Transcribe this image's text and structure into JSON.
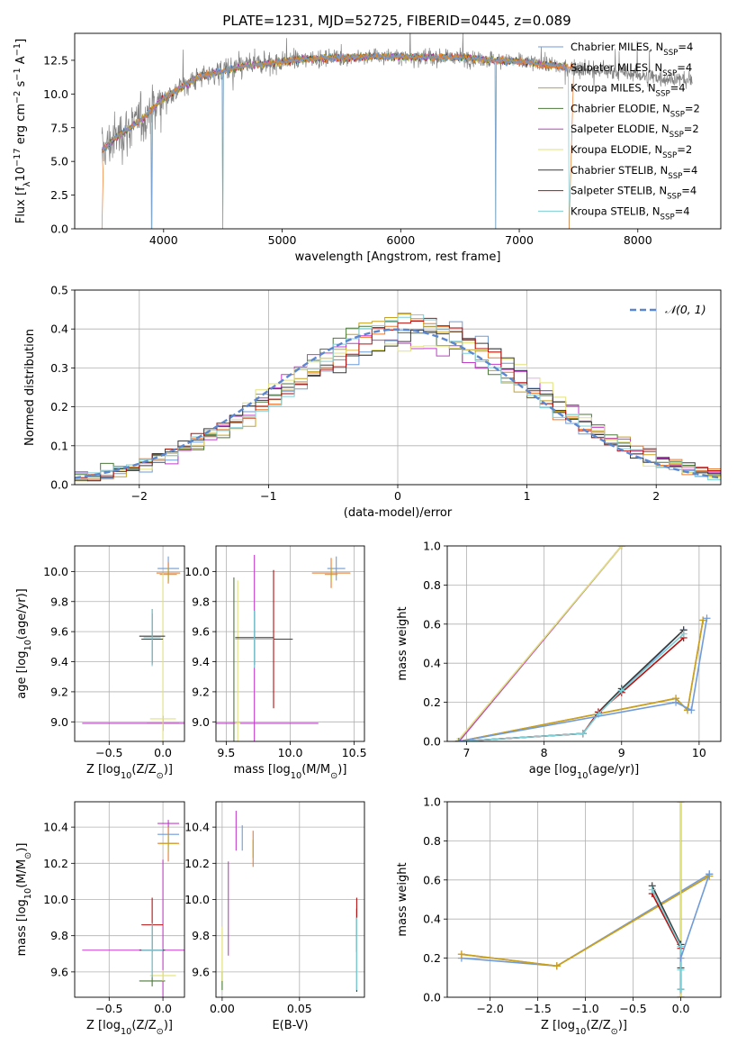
{
  "figure": {
    "title": "PLATE=1231, MJD=52725, FIBERID=0445, z=0.089",
    "legend_entries": [
      "Chabrier MILES, N$_{SSP}$=4",
      "Salpeter MILES, N$_{SSP}$=4",
      "Kroupa MILES, N$_{SSP}$=4",
      "Chabrier ELODIE, N$_{SSP}$=2",
      "Salpeter ELODIE, N$_{SSP}$=2",
      "Kroupa ELODIE, N$_{SSP}$=2",
      "Chabrier STELIB, N$_{SSP}$=4",
      "Salpeter STELIB, N$_{SSP}$=4",
      "Kroupa STELIB, N$_{SSP}$=4"
    ],
    "colors": [
      "#6f9bd9",
      "#ee7a2c",
      "#c6a21f",
      "#4c7a3a",
      "#c43ccc",
      "#e2e27a",
      "#3a3a3a",
      "#b80f0f",
      "#7dcfd6"
    ],
    "data_gray": "#808080",
    "normal_color": "#5b87d1"
  },
  "chart_data": [
    {
      "type": "line",
      "title": "PLATE=1231, MJD=52725, FIBERID=0445, z=0.089",
      "xlabel": "wavelength [Angstrom, rest frame]",
      "ylabel": "Flux [f$_\\lambda$10$^{-17}$ erg cm$^{-2}$ s$^{-1}$ A$^{-1}$]",
      "xlim": [
        3250,
        8700
      ],
      "ylim": [
        0,
        14.5
      ],
      "xticks": [
        4000,
        5000,
        6000,
        7000,
        8000
      ],
      "yticks": [
        0.0,
        2.5,
        5.0,
        7.5,
        10.0,
        12.5
      ],
      "grid": false,
      "legend_loc": "upper right",
      "data_x_range": [
        3480,
        8460
      ],
      "model_x_range": [
        3480,
        7420
      ],
      "continuum_x": [
        3480,
        3600,
        3800,
        4000,
        4300,
        4700,
        5200,
        5800,
        6500,
        7000,
        7400,
        8000,
        8460
      ],
      "continuum_y": [
        5.8,
        6.8,
        8.0,
        9.7,
        11.3,
        12.1,
        12.6,
        12.8,
        12.7,
        12.4,
        12.0,
        11.4,
        11.0
      ],
      "model_drops_x": [
        3900,
        4500,
        6800,
        7420
      ],
      "series": [
        {
          "name": "Chabrier MILES, N$_{SSP}$=4"
        },
        {
          "name": "Salpeter MILES, N$_{SSP}$=4"
        },
        {
          "name": "Kroupa MILES, N$_{SSP}$=4"
        },
        {
          "name": "Chabrier ELODIE, N$_{SSP}$=2"
        },
        {
          "name": "Salpeter ELODIE, N$_{SSP}$=2"
        },
        {
          "name": "Kroupa ELODIE, N$_{SSP}$=2"
        },
        {
          "name": "Chabrier STELIB, N$_{SSP}$=4"
        },
        {
          "name": "Salpeter STELIB, N$_{SSP}$=4"
        },
        {
          "name": "Kroupa STELIB, N$_{SSP}$=4"
        }
      ]
    },
    {
      "type": "bar",
      "xlabel": "(data-model)/error",
      "ylabel": "Normed distribution",
      "xlim": [
        -2.5,
        2.5
      ],
      "ylim": [
        0,
        0.5
      ],
      "xticks": [
        -2,
        -1,
        0,
        1,
        2
      ],
      "yticks": [
        0.0,
        0.1,
        0.2,
        0.3,
        0.4,
        0.5
      ],
      "grid": true,
      "legend_loc": "upper right",
      "normal_label": "$\\mathcal{N}(0,1)$",
      "bin_width": 0.1
    },
    {
      "type": "scatter",
      "xlabel": "Z [log$_{10}$(Z/Z$_\\odot$)]",
      "ylabel": "age  [log$_{10}$(age/yr)]",
      "xlim": [
        -0.82,
        0.2
      ],
      "ylim": [
        8.87,
        10.17
      ],
      "xticks": [
        -0.5,
        0.0
      ],
      "yticks": [
        9.0,
        9.2,
        9.4,
        9.6,
        9.8,
        10.0
      ],
      "grid": true,
      "points": [
        {
          "s": 0,
          "x": 0.05,
          "y": 10.02,
          "xe": 0.1,
          "ye": 0.08
        },
        {
          "s": 1,
          "x": 0.05,
          "y": 9.99,
          "xe": 0.11,
          "ye": 0.07
        },
        {
          "s": 2,
          "x": 0.05,
          "y": 9.98,
          "xe": 0.08,
          "ye": 0.05
        },
        {
          "s": 3,
          "x": 0.0,
          "y": 8.99,
          "xe": 0.15,
          "ye": 0.05
        },
        {
          "s": 4,
          "x": 0.0,
          "y": 8.99,
          "xe": 0.75,
          "ye": 0.05
        },
        {
          "s": 5,
          "x": 0.0,
          "y": 9.02,
          "xe": 0.12,
          "ye": 0.97
        },
        {
          "s": 6,
          "x": -0.1,
          "y": 9.57,
          "xe": 0.12,
          "ye": 0.18
        },
        {
          "s": 7,
          "x": -0.1,
          "y": 9.55,
          "xe": 0.1,
          "ye": 0.17
        },
        {
          "s": 8,
          "x": -0.1,
          "y": 9.56,
          "xe": 0.08,
          "ye": 0.19
        }
      ]
    },
    {
      "type": "scatter",
      "xlabel": "mass [log$_{10}$(M/M$_\\odot$)]",
      "ylabel": "",
      "xlim": [
        9.42,
        10.58
      ],
      "ylim": [
        8.87,
        10.17
      ],
      "xticks": [
        9.5,
        10.0,
        10.5
      ],
      "yticks": [
        9.0,
        9.2,
        9.4,
        9.6,
        9.8,
        10.0
      ],
      "grid": true,
      "points": [
        {
          "s": 0,
          "x": 10.36,
          "y": 10.02,
          "xe": 0.07,
          "ye": 0.08
        },
        {
          "s": 1,
          "x": 10.32,
          "y": 9.99,
          "xe": 0.15,
          "ye": 0.1
        },
        {
          "s": 2,
          "x": 10.32,
          "y": 9.98,
          "xe": 0.05,
          "ye": 0.05
        },
        {
          "s": 3,
          "x": 9.56,
          "y": 8.99,
          "xe": 0.03,
          "ye": 0.97
        },
        {
          "s": 4,
          "x": 9.72,
          "y": 8.99,
          "xe": 0.5,
          "ye": 1.12
        },
        {
          "s": 5,
          "x": 9.59,
          "y": 8.99,
          "xe": 0.02,
          "ye": 0.95
        },
        {
          "s": 6,
          "x": 9.72,
          "y": 9.56,
          "xe": 0.15,
          "ye": 0.18
        },
        {
          "s": 7,
          "x": 9.87,
          "y": 9.55,
          "xe": 0.15,
          "ye": 0.46
        },
        {
          "s": 8,
          "x": 9.72,
          "y": 9.55,
          "xe": 0.15,
          "ye": 0.19
        }
      ]
    },
    {
      "type": "line",
      "xlabel": "age  [log$_{10}$(age/yr)]",
      "ylabel": "mass weight",
      "xlim": [
        6.75,
        10.28
      ],
      "ylim": [
        0,
        1.0
      ],
      "xticks": [
        7,
        8,
        9,
        10
      ],
      "yticks": [
        0.0,
        0.2,
        0.4,
        0.6,
        0.8,
        1.0
      ],
      "grid": true,
      "series": [
        {
          "s": 0,
          "x": [
            6.9,
            8.5,
            8.7,
            9.0,
            9.8
          ],
          "y": [
            0.0,
            0.04,
            0.14,
            0.26,
            0.57
          ]
        },
        {
          "s": 1,
          "x": [
            6.9,
            9.7,
            9.85,
            10.05
          ],
          "y": [
            0.0,
            0.22,
            0.16,
            0.62
          ]
        },
        {
          "s": 2,
          "x": [
            6.9,
            9.7,
            9.85,
            10.05
          ],
          "y": [
            0.0,
            0.22,
            0.16,
            0.62
          ]
        },
        {
          "s": 3,
          "x": [
            6.9,
            9.0
          ],
          "y": [
            0.0,
            1.0
          ]
        },
        {
          "s": 4,
          "x": [
            6.9,
            9.0
          ],
          "y": [
            0.0,
            1.0
          ]
        },
        {
          "s": 5,
          "x": [
            6.88,
            9.0
          ],
          "y": [
            0.0,
            1.0
          ]
        },
        {
          "s": 6,
          "x": [
            6.9,
            8.5,
            8.7,
            9.0,
            9.8
          ],
          "y": [
            0.0,
            0.04,
            0.15,
            0.27,
            0.57
          ]
        },
        {
          "s": 7,
          "x": [
            6.9,
            8.5,
            8.7,
            9.0,
            9.8
          ],
          "y": [
            0.0,
            0.04,
            0.15,
            0.25,
            0.53
          ]
        },
        {
          "s": 8,
          "x": [
            6.9,
            8.5,
            8.7,
            9.0,
            9.8
          ],
          "y": [
            0.0,
            0.04,
            0.14,
            0.26,
            0.55
          ]
        },
        {
          "s": 0,
          "x": [
            6.9,
            9.7,
            9.9,
            10.1
          ],
          "y": [
            0.0,
            0.2,
            0.16,
            0.63
          ]
        }
      ]
    },
    {
      "type": "scatter",
      "xlabel": "Z [log$_{10}$(Z/Z$_\\odot$)]",
      "ylabel": "mass [log$_{10}$(M/M$_\\odot$)]",
      "xlim": [
        -0.82,
        0.2
      ],
      "ylim": [
        9.46,
        10.54
      ],
      "xticks": [
        -0.5,
        0.0
      ],
      "yticks": [
        9.6,
        9.8,
        10.0,
        10.2,
        10.4
      ],
      "grid": true,
      "points": [
        {
          "s": 0,
          "x": 0.05,
          "y": 10.36,
          "xe": 0.1,
          "ye": 0.07
        },
        {
          "s": 1,
          "x": 0.05,
          "y": 10.31,
          "xe": 0.1,
          "ye": 0.1
        },
        {
          "s": 2,
          "x": 0.05,
          "y": 10.31,
          "xe": 0.08,
          "ye": 0.05
        },
        {
          "s": 3,
          "x": -0.1,
          "y": 9.55,
          "xe": 0.12,
          "ye": 0.03
        },
        {
          "s": 4,
          "x": 0.0,
          "y": 9.72,
          "xe": 0.75,
          "ye": 0.5
        },
        {
          "s": 5,
          "x": 0.0,
          "y": 9.58,
          "xe": 0.12,
          "ye": 0.03
        },
        {
          "s": 6,
          "x": -0.1,
          "y": 9.72,
          "xe": 0.12,
          "ye": 0.15
        },
        {
          "s": 7,
          "x": -0.1,
          "y": 9.86,
          "xe": 0.1,
          "ye": 0.15
        },
        {
          "s": 8,
          "x": -0.1,
          "y": 9.72,
          "xe": 0.1,
          "ye": 0.15
        },
        {
          "s": 4,
          "x": 0.05,
          "y": 10.42,
          "xe": 0.1,
          "ye": 0.02
        }
      ]
    },
    {
      "type": "scatter",
      "xlabel": "E(B-V)",
      "ylabel": "",
      "xlim": [
        -0.004,
        0.092
      ],
      "ylim": [
        9.46,
        10.54
      ],
      "xticks": [
        0.0,
        0.05
      ],
      "yticks": [
        9.6,
        9.8,
        10.0,
        10.2,
        10.4
      ],
      "grid": true,
      "points": [
        {
          "s": 0,
          "x": 0.013,
          "y": 10.34,
          "xe": 0.0,
          "ye": 0.07
        },
        {
          "s": 1,
          "x": 0.02,
          "y": 10.28,
          "xe": 0.0,
          "ye": 0.1
        },
        {
          "s": 2,
          "x": 0.02,
          "y": 10.28,
          "xe": 0.0,
          "ye": 0.05
        },
        {
          "s": 3,
          "x": 0.0,
          "y": 9.55,
          "xe": 0.0,
          "ye": 0.05
        },
        {
          "s": 4,
          "x": 0.004,
          "y": 9.95,
          "xe": 0.0,
          "ye": 0.26
        },
        {
          "s": 5,
          "x": 0.0,
          "y": 9.7,
          "xe": 0.0,
          "ye": 0.15
        },
        {
          "s": 6,
          "x": 0.087,
          "y": 9.72,
          "xe": 0.0,
          "ye": 0.23
        },
        {
          "s": 7,
          "x": 0.087,
          "y": 9.86,
          "xe": 0.0,
          "ye": 0.15
        },
        {
          "s": 8,
          "x": 0.087,
          "y": 9.7,
          "xe": 0.0,
          "ye": 0.2
        },
        {
          "s": 4,
          "x": 0.009,
          "y": 10.38,
          "xe": 0.0,
          "ye": 0.11
        }
      ]
    },
    {
      "type": "line",
      "xlabel": "Z [log$_{10}$(Z/Z$_\\odot$)]",
      "ylabel": "mass weight",
      "xlim": [
        -2.45,
        0.42
      ],
      "ylim": [
        0,
        1.0
      ],
      "xticks": [
        -2.0,
        -1.5,
        -1.0,
        -0.5,
        0.0
      ],
      "yticks": [
        0.0,
        0.2,
        0.4,
        0.6,
        0.8,
        1.0
      ],
      "grid": true,
      "series": [
        {
          "s": 0,
          "x": [
            -2.3,
            -1.3,
            0.3
          ],
          "y": [
            0.2,
            0.16,
            0.63
          ]
        },
        {
          "s": 1,
          "x": [
            -2.3,
            -1.3,
            0.3
          ],
          "y": [
            0.22,
            0.16,
            0.62
          ]
        },
        {
          "s": 2,
          "x": [
            -2.3,
            -1.3,
            0.3
          ],
          "y": [
            0.22,
            0.16,
            0.62
          ]
        },
        {
          "s": 3,
          "x": [
            0.0,
            0.0
          ],
          "y": [
            0.0,
            1.0
          ]
        },
        {
          "s": 4,
          "x": [
            0.0,
            0.0
          ],
          "y": [
            0.0,
            1.0
          ]
        },
        {
          "s": 5,
          "x": [
            0.0,
            0.0
          ],
          "y": [
            0.0,
            1.0
          ]
        },
        {
          "s": 6,
          "x": [
            -0.3,
            0.0,
            0.0,
            0.0
          ],
          "y": [
            0.57,
            0.27,
            0.15,
            0.04
          ]
        },
        {
          "s": 7,
          "x": [
            -0.3,
            0.0,
            0.0
          ],
          "y": [
            0.53,
            0.25,
            0.04
          ]
        },
        {
          "s": 8,
          "x": [
            -0.3,
            0.0,
            0.0,
            0.0
          ],
          "y": [
            0.55,
            0.26,
            0.14,
            0.04
          ]
        },
        {
          "s": 0,
          "x": [
            0.0,
            0.3
          ],
          "y": [
            0.2,
            0.63
          ]
        }
      ]
    }
  ]
}
